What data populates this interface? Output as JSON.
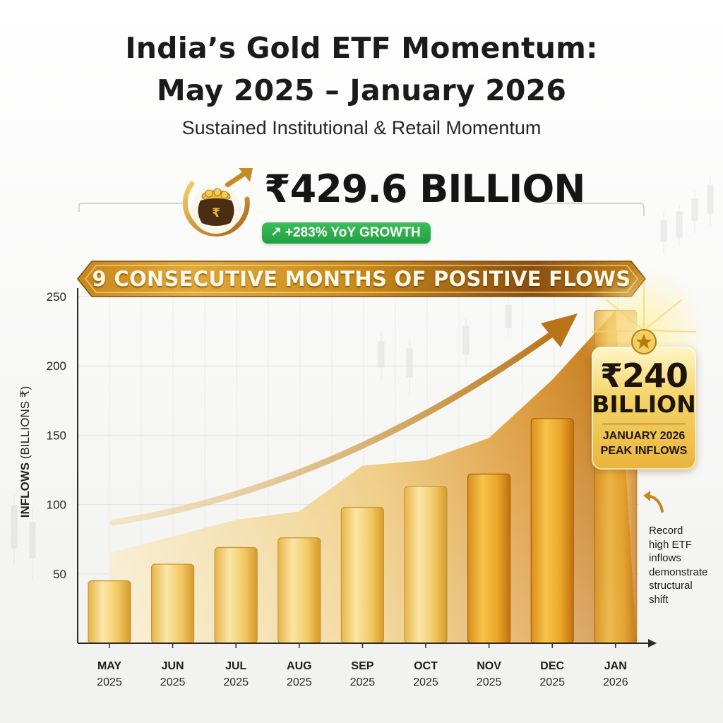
{
  "header": {
    "title_line1": "India’s Gold ETF Momentum:",
    "title_line2": "May 2025 – January 2026",
    "subtitle": "Sustained Institutional & Retail Momentum"
  },
  "headline": {
    "value": "₹429.6 BILLION",
    "growth_arrow": "↗",
    "growth": "+283% YoY GROWTH",
    "icon": "gold-pot-rupee-icon",
    "pot_symbol": "₹"
  },
  "banner": {
    "text": "9 CONSECUTIVE MONTHS OF POSITIVE FLOWS"
  },
  "y_axis_title": {
    "main": "INFLOWS",
    "unit": "(BILLIONS ₹)"
  },
  "callout": {
    "icon": "star-icon",
    "amount": "₹240",
    "unit": "BILLION",
    "caption_line1": "JANUARY 2026",
    "caption_line2": "PEAK INFLOWS"
  },
  "note": {
    "icon": "curved-arrow-icon",
    "lines": [
      "Record",
      "high ETF",
      "inflows",
      "demonstrate",
      "structural",
      "shift"
    ]
  },
  "colors": {
    "gold_light": "#f7e2a8",
    "gold_mid": "#e9b640",
    "gold_dark": "#c7780f",
    "growth_green": "#23a443",
    "text_dark": "#1b1b1b"
  },
  "chart_data": {
    "type": "bar",
    "categories": [
      [
        "MAY",
        "2025"
      ],
      [
        "JUN",
        "2025"
      ],
      [
        "JUL",
        "2025"
      ],
      [
        "AUG",
        "2025"
      ],
      [
        "SEP",
        "2025"
      ],
      [
        "OCT",
        "2025"
      ],
      [
        "NOV",
        "2025"
      ],
      [
        "DEC",
        "2025"
      ],
      [
        "JAN",
        "2026"
      ]
    ],
    "values": [
      45,
      57,
      69,
      76,
      98,
      113,
      122,
      162,
      240
    ],
    "area_values": [
      65,
      77,
      89,
      95,
      128,
      132,
      148,
      190,
      240
    ],
    "yticks": [
      50,
      100,
      150,
      200,
      250
    ],
    "ylim": [
      0,
      250
    ],
    "grid": true,
    "trend_arrow": true
  }
}
